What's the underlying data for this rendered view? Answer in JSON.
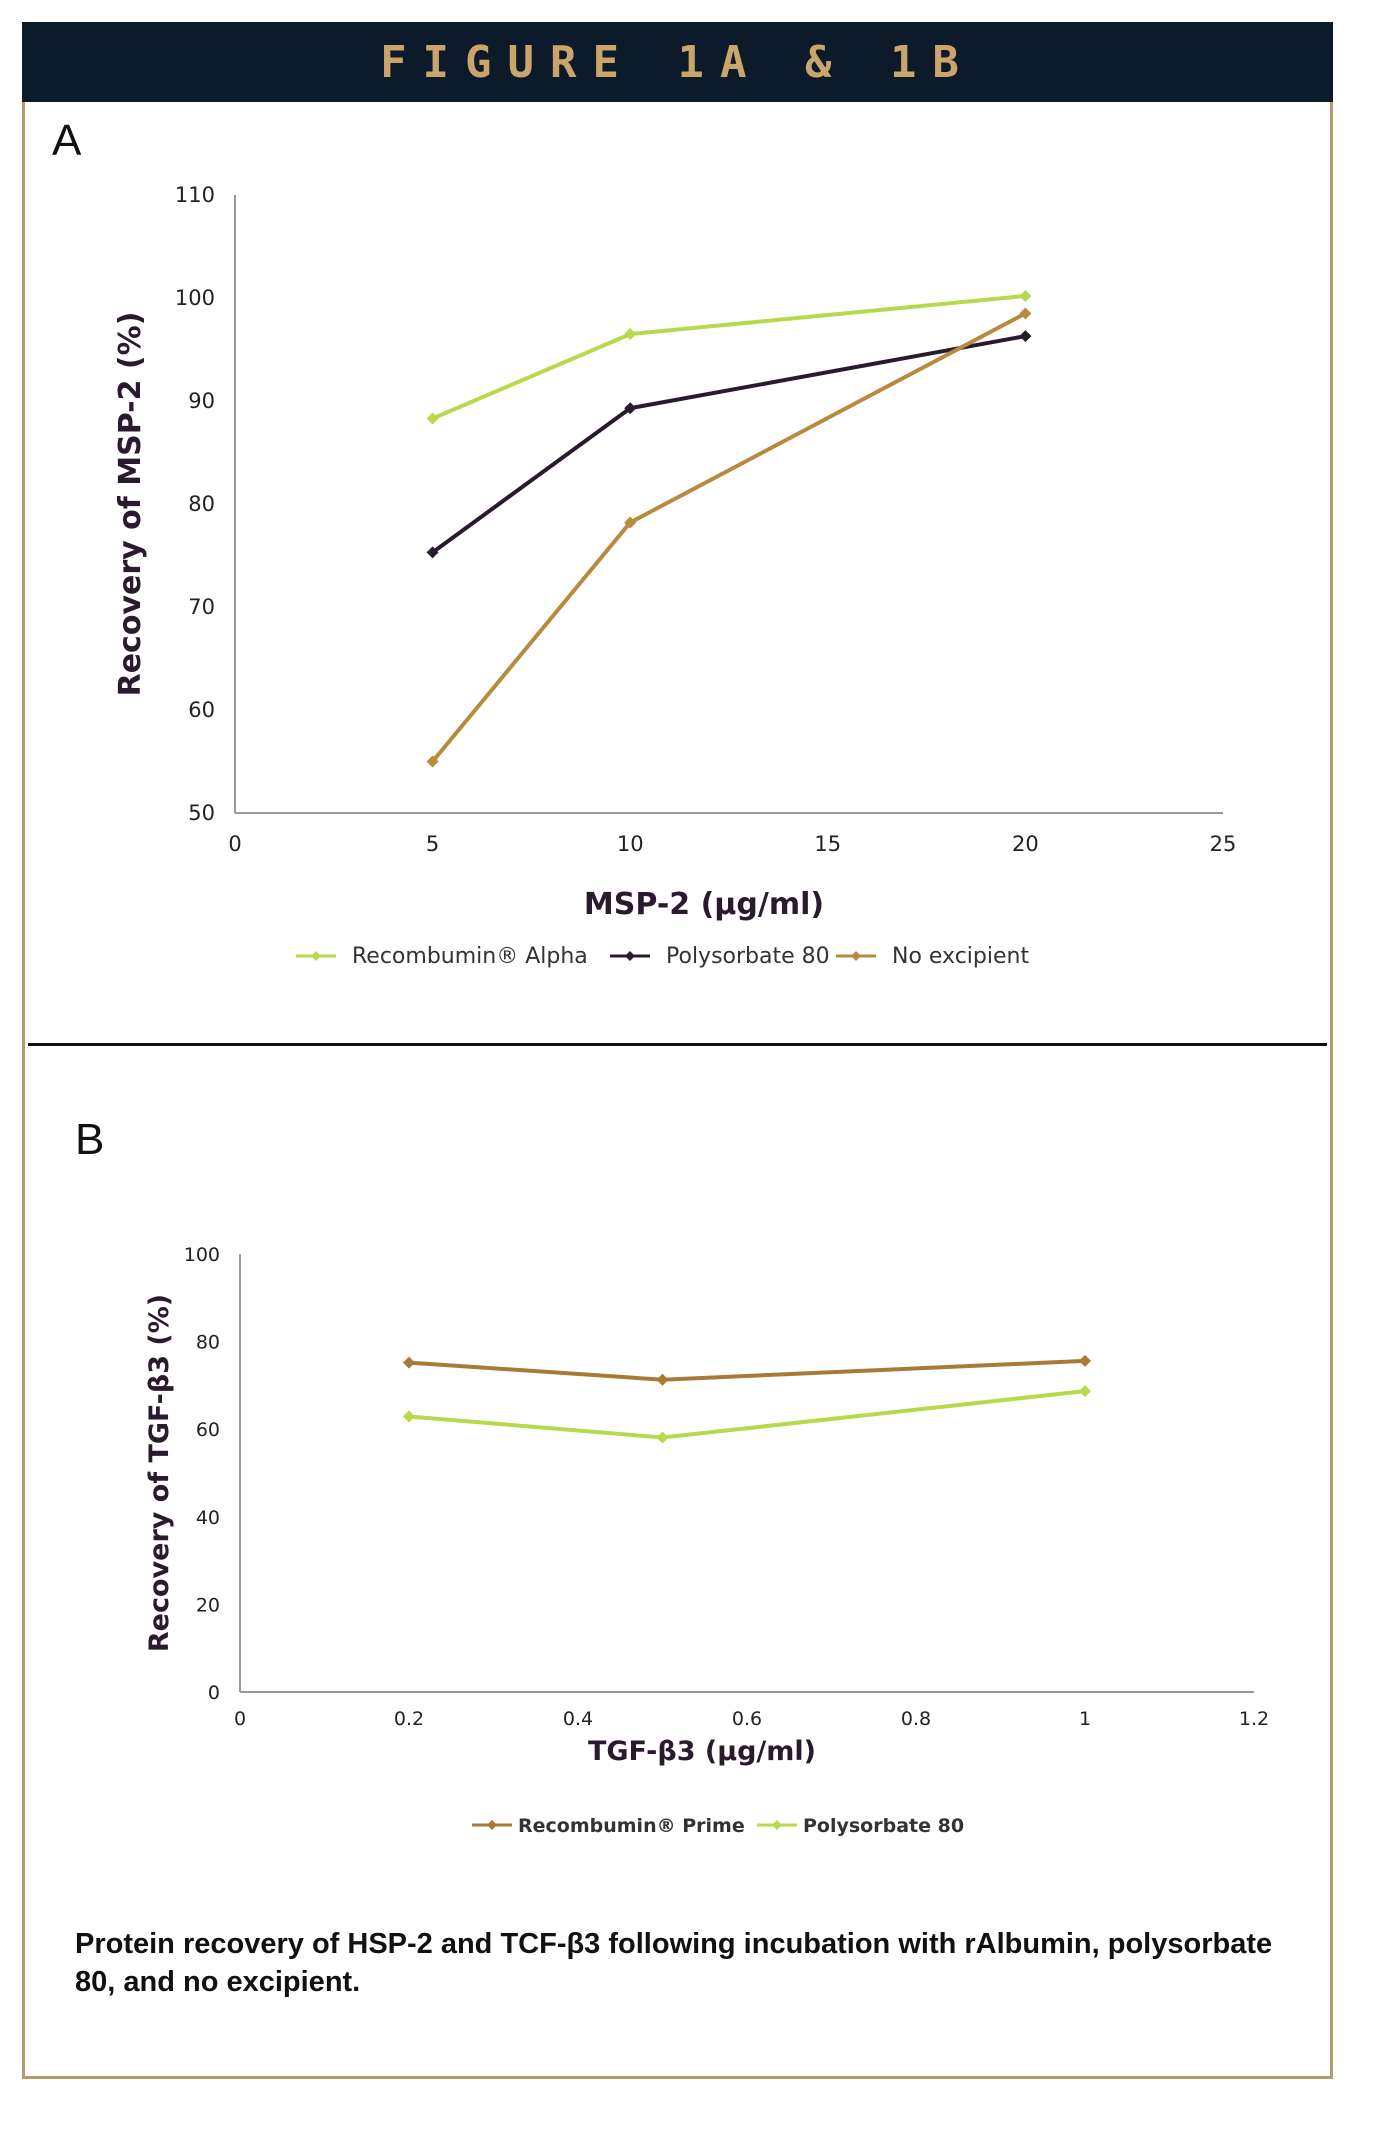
{
  "header": {
    "title": "FIGURE 1A & 1B"
  },
  "caption": "Protein recovery of HSP-2 and TCF-β3 following incubation with rAlbumin, polysorbate 80, and no excipient.",
  "colors": {
    "banner_bg": "#0c1a2a",
    "banner_text": "#c9a46b",
    "frame": "#b89a6a"
  },
  "chart_data": [
    {
      "panel": "A",
      "type": "line",
      "xlabel": "MSP-2 (µg/ml)",
      "ylabel": "Recovery of MSP-2 (%)",
      "xlim": [
        0,
        25
      ],
      "ylim": [
        50,
        110
      ],
      "xticks": [
        0,
        5,
        10,
        15,
        20,
        25
      ],
      "yticks": [
        50,
        60,
        70,
        80,
        90,
        100,
        110
      ],
      "grid": false,
      "legend_position": "bottom",
      "series": [
        {
          "name": "Recombumin® Alpha",
          "color": "#b8d94a",
          "x": [
            5,
            10,
            20
          ],
          "values": [
            88.3,
            96.5,
            100.2
          ]
        },
        {
          "name": "Polysorbate 80",
          "color": "#2a1a2e",
          "x": [
            5,
            10,
            20
          ],
          "values": [
            75.3,
            89.3,
            96.3
          ]
        },
        {
          "name": "No excipient",
          "color": "#b98a3e",
          "x": [
            5,
            10,
            20
          ],
          "values": [
            55.0,
            78.2,
            98.5
          ]
        }
      ]
    },
    {
      "panel": "B",
      "type": "line",
      "xlabel": "TGF-β3 (µg/ml)",
      "ylabel": "Recovery of TGF-β3 (%)",
      "xlim": [
        0,
        1.2
      ],
      "ylim": [
        0,
        100
      ],
      "xticks": [
        0,
        0.2,
        0.4,
        0.6,
        0.8,
        1,
        1.2
      ],
      "yticks": [
        0,
        20,
        40,
        60,
        80,
        100
      ],
      "grid": false,
      "legend_position": "bottom",
      "series": [
        {
          "name": "Recombumin® Prime",
          "color": "#a87a36",
          "x": [
            0.2,
            0.5,
            1
          ],
          "values": [
            75.2,
            71.3,
            75.6
          ]
        },
        {
          "name": "Polysorbate 80",
          "color": "#b8d94a",
          "x": [
            0.2,
            0.5,
            1
          ],
          "values": [
            62.9,
            58.1,
            68.7
          ]
        }
      ]
    }
  ]
}
